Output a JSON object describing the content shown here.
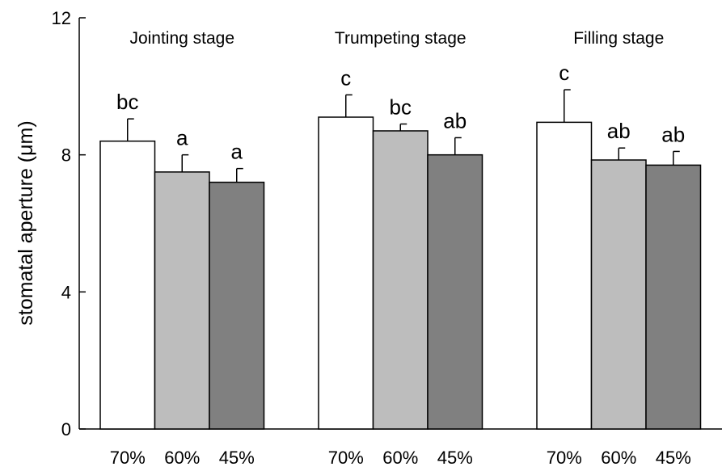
{
  "chart_data": {
    "type": "bar",
    "ylabel": "stomatal aperture (μm)",
    "ylim": [
      0,
      12
    ],
    "yticks": [
      0,
      4,
      8,
      12
    ],
    "grid": false,
    "colors": [
      "#ffffff",
      "#bdbdbd",
      "#808080"
    ],
    "groups": [
      {
        "name": "Jointing stage",
        "categories": [
          "70%",
          "60%",
          "45%"
        ],
        "values": [
          8.4,
          7.5,
          7.2
        ],
        "errors": [
          0.65,
          0.5,
          0.4
        ],
        "letters": [
          "bc",
          "a",
          "a"
        ]
      },
      {
        "name": "Trumpeting stage",
        "categories": [
          "70%",
          "60%",
          "45%"
        ],
        "values": [
          9.1,
          8.7,
          8.0
        ],
        "errors": [
          0.65,
          0.2,
          0.5
        ],
        "letters": [
          "c",
          "bc",
          "ab"
        ]
      },
      {
        "name": "Filling stage",
        "categories": [
          "70%",
          "60%",
          "45%"
        ],
        "values": [
          8.95,
          7.85,
          7.7
        ],
        "errors": [
          0.95,
          0.35,
          0.4
        ],
        "letters": [
          "c",
          "ab",
          "ab"
        ]
      }
    ]
  }
}
